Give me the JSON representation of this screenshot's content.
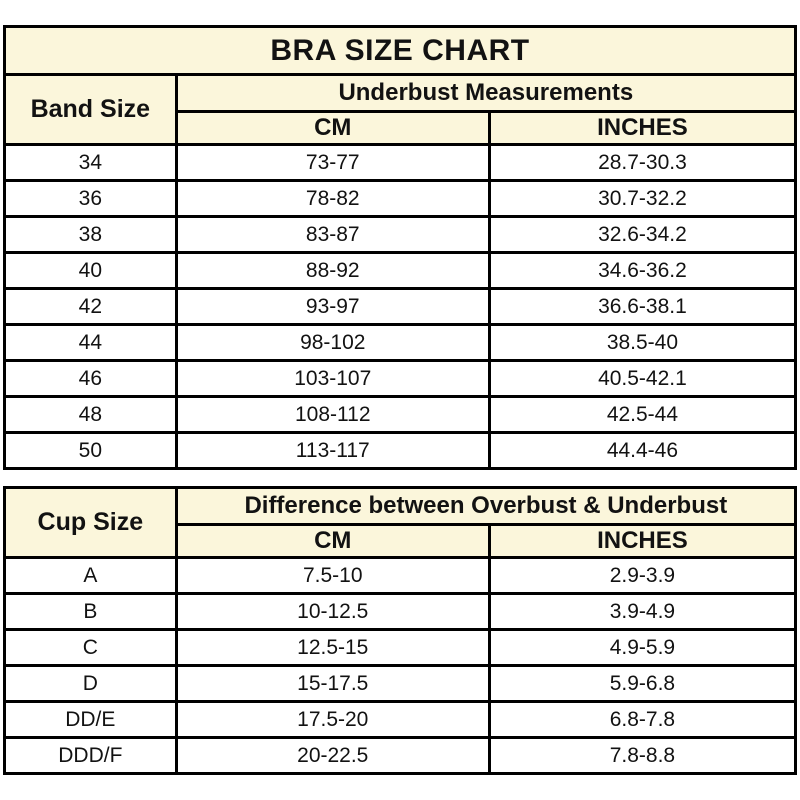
{
  "colors": {
    "header_bg": "#FBF6DB",
    "data_bg": "#FFFFFF",
    "border": "#000000",
    "text": "#121212"
  },
  "chart_data": [
    {
      "type": "table",
      "title": "BRA SIZE CHART",
      "corner_header": "Band Size",
      "group_header": "Underbust Measurements",
      "columns": [
        "CM",
        "INCHES"
      ],
      "rows": [
        [
          "34",
          "73-77",
          "28.7-30.3"
        ],
        [
          "36",
          "78-82",
          "30.7-32.2"
        ],
        [
          "38",
          "83-87",
          "32.6-34.2"
        ],
        [
          "40",
          "88-92",
          "34.6-36.2"
        ],
        [
          "42",
          "93-97",
          "36.6-38.1"
        ],
        [
          "44",
          "98-102",
          "38.5-40"
        ],
        [
          "46",
          "103-107",
          "40.5-42.1"
        ],
        [
          "48",
          "108-112",
          "42.5-44"
        ],
        [
          "50",
          "113-117",
          "44.4-46"
        ]
      ]
    },
    {
      "type": "table",
      "title": "",
      "corner_header": "Cup Size",
      "group_header": "Difference between Overbust & Underbust",
      "columns": [
        "CM",
        "INCHES"
      ],
      "rows": [
        [
          "A",
          "7.5-10",
          "2.9-3.9"
        ],
        [
          "B",
          "10-12.5",
          "3.9-4.9"
        ],
        [
          "C",
          "12.5-15",
          "4.9-5.9"
        ],
        [
          "D",
          "15-17.5",
          "5.9-6.8"
        ],
        [
          "DD/E",
          "17.5-20",
          "6.8-7.8"
        ],
        [
          "DDD/F",
          "20-22.5",
          "7.8-8.8"
        ]
      ]
    }
  ]
}
